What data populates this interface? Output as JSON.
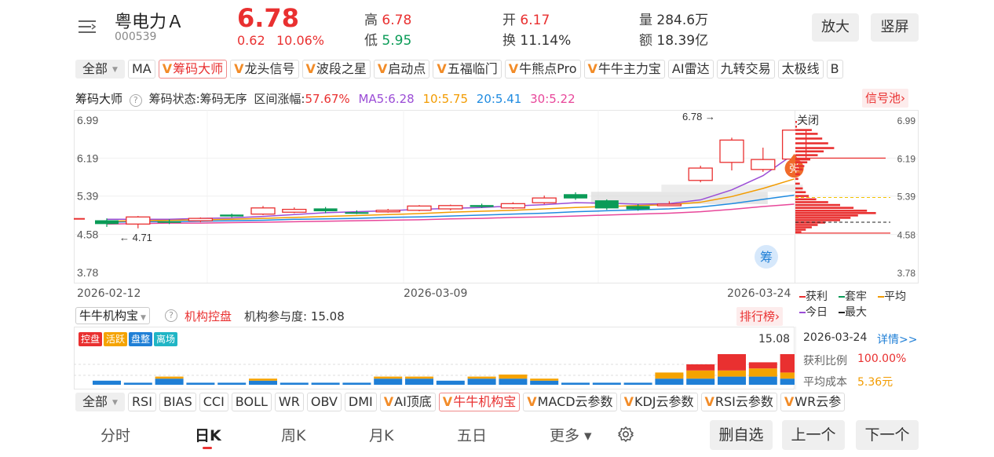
{
  "stock": {
    "name": "粤电力Ａ",
    "code": "000539",
    "price": "6.78",
    "change": "0.62",
    "change_pct": "10.06%",
    "high_label": "高",
    "high": "6.78",
    "low_label": "低",
    "low": "5.95",
    "open_label": "开",
    "open": "6.17",
    "turnover_label": "换",
    "turnover": "11.14%",
    "volume_label": "量",
    "volume": "284.6万",
    "amount_label": "额",
    "amount": "18.39亿"
  },
  "header_buttons": {
    "zoom": "放大",
    "portrait": "竖屏"
  },
  "indicator_tags": [
    {
      "label": "全部",
      "vip": false,
      "selected": false,
      "dropdown": true
    },
    {
      "label": "MA",
      "vip": false,
      "selected": false
    },
    {
      "label": "筹码大师",
      "vip": true,
      "selected": true
    },
    {
      "label": "龙头信号",
      "vip": true,
      "selected": false
    },
    {
      "label": "波段之星",
      "vip": true,
      "selected": false
    },
    {
      "label": "启动点",
      "vip": true,
      "selected": false
    },
    {
      "label": "五福临门",
      "vip": true,
      "selected": false
    },
    {
      "label": "牛熊点Pro",
      "vip": true,
      "selected": false
    },
    {
      "label": "牛牛主力宝",
      "vip": true,
      "selected": false
    },
    {
      "label": "AI雷达",
      "vip": false,
      "selected": false
    },
    {
      "label": "九转交易",
      "vip": false,
      "selected": false
    },
    {
      "label": "太极线",
      "vip": false,
      "selected": false
    },
    {
      "label": "B",
      "vip": false,
      "selected": false
    }
  ],
  "chip_info": {
    "title": "筹码大师",
    "status": "筹码状态:筹码无序",
    "range_label": "区间涨幅:",
    "range_value": "57.67%",
    "ma5": "MA5:6.28",
    "ma10": "10:5.75",
    "ma20": "20:5.41",
    "ma30": "30:5.22",
    "signal_pool": "信号池",
    "close_label": "关闭"
  },
  "chart_data": {
    "type": "candlestick",
    "y_ticks": [
      "6.99",
      "6.19",
      "5.39",
      "4.58",
      "3.78"
    ],
    "right_ticks": [
      "6.99",
      "6.19",
      "5.39",
      "4.58",
      "3.78"
    ],
    "ylim": [
      3.78,
      6.99
    ],
    "x_labels": [
      "2026-02-12",
      "2026-03-09",
      "2026-03-24"
    ],
    "max_annotation": "6.78",
    "min_annotation": "4.71",
    "candles": [
      {
        "o": 4.88,
        "c": 4.8,
        "h": 4.92,
        "l": 4.74
      },
      {
        "o": 4.8,
        "c": 4.95,
        "h": 4.97,
        "l": 4.71
      },
      {
        "o": 4.86,
        "c": 4.84,
        "h": 4.9,
        "l": 4.8
      },
      {
        "o": 4.87,
        "c": 4.92,
        "h": 4.94,
        "l": 4.84
      },
      {
        "o": 5.0,
        "c": 4.96,
        "h": 5.02,
        "l": 4.94
      },
      {
        "o": 5.01,
        "c": 5.14,
        "h": 5.18,
        "l": 4.99
      },
      {
        "o": 5.05,
        "c": 5.11,
        "h": 5.15,
        "l": 5.03
      },
      {
        "o": 5.13,
        "c": 5.07,
        "h": 5.16,
        "l": 5.03
      },
      {
        "o": 5.05,
        "c": 5.03,
        "h": 5.09,
        "l": 5.01
      },
      {
        "o": 5.06,
        "c": 5.09,
        "h": 5.12,
        "l": 5.04
      },
      {
        "o": 5.09,
        "c": 5.18,
        "h": 5.2,
        "l": 5.07
      },
      {
        "o": 5.12,
        "c": 5.19,
        "h": 5.21,
        "l": 5.09
      },
      {
        "o": 5.2,
        "c": 5.16,
        "h": 5.23,
        "l": 5.14
      },
      {
        "o": 5.14,
        "c": 5.23,
        "h": 5.26,
        "l": 5.12
      },
      {
        "o": 5.25,
        "c": 5.35,
        "h": 5.4,
        "l": 5.22
      },
      {
        "o": 5.43,
        "c": 5.34,
        "h": 5.47,
        "l": 5.31
      },
      {
        "o": 5.3,
        "c": 5.13,
        "h": 5.32,
        "l": 5.1
      },
      {
        "o": 5.18,
        "c": 5.11,
        "h": 5.22,
        "l": 5.08
      },
      {
        "o": 5.2,
        "c": 5.22,
        "h": 5.28,
        "l": 5.18
      },
      {
        "o": 5.72,
        "c": 5.98,
        "h": 6.03,
        "l": 5.68
      },
      {
        "o": 6.1,
        "c": 6.57,
        "h": 6.62,
        "l": 5.93
      },
      {
        "o": 5.95,
        "c": 6.16,
        "h": 6.41,
        "l": 5.9
      },
      {
        "o": 6.17,
        "c": 6.78,
        "h": 6.78,
        "l": 5.95
      }
    ],
    "ma5": [
      4.9,
      4.9,
      4.9,
      4.92,
      4.93,
      4.96,
      5.0,
      5.04,
      5.06,
      5.08,
      5.11,
      5.13,
      5.15,
      5.18,
      5.21,
      5.25,
      5.24,
      5.22,
      5.23,
      5.31,
      5.52,
      5.82,
      6.28
    ],
    "ma10": [
      4.86,
      4.87,
      4.88,
      4.89,
      4.9,
      4.92,
      4.94,
      4.96,
      4.98,
      5.0,
      5.02,
      5.05,
      5.07,
      5.09,
      5.12,
      5.15,
      5.17,
      5.19,
      5.21,
      5.26,
      5.38,
      5.55,
      5.75
    ],
    "ma20": [
      4.84,
      4.85,
      4.85,
      4.86,
      4.87,
      4.88,
      4.9,
      4.91,
      4.92,
      4.94,
      4.95,
      4.97,
      4.99,
      5.01,
      5.03,
      5.06,
      5.08,
      5.1,
      5.12,
      5.16,
      5.23,
      5.32,
      5.41
    ],
    "ma30": [
      4.8,
      4.81,
      4.82,
      4.82,
      4.83,
      4.84,
      4.85,
      4.86,
      4.87,
      4.88,
      4.89,
      4.91,
      4.92,
      4.94,
      4.95,
      4.97,
      4.99,
      5.01,
      5.03,
      5.06,
      5.11,
      5.17,
      5.22
    ],
    "chip_profile": [
      {
        "price": 6.95,
        "w": 8,
        "c": "#e93030"
      },
      {
        "price": 6.85,
        "w": 14,
        "c": "#e93030"
      },
      {
        "price": 6.78,
        "w": 22,
        "c": "#e93030"
      },
      {
        "price": 6.7,
        "w": 30,
        "c": "#e93030"
      },
      {
        "price": 6.6,
        "w": 36,
        "c": "#e93030"
      },
      {
        "price": 6.5,
        "w": 44,
        "c": "#e93030"
      },
      {
        "price": 6.4,
        "w": 52,
        "c": "#e93030"
      },
      {
        "price": 6.33,
        "w": 38,
        "c": "#e93030"
      },
      {
        "price": 6.25,
        "w": 30,
        "c": "#e93030"
      },
      {
        "price": 6.16,
        "w": 20,
        "c": "#e93030"
      },
      {
        "price": 6.1,
        "w": 16,
        "c": "#e93030"
      },
      {
        "price": 6.02,
        "w": 12,
        "c": "#e93030"
      },
      {
        "price": 5.95,
        "w": 10,
        "c": "#e93030"
      },
      {
        "price": 5.85,
        "w": 6,
        "c": "#e93030"
      },
      {
        "price": 5.75,
        "w": 4,
        "c": "#e93030"
      },
      {
        "price": 5.65,
        "w": 6,
        "c": "#e93030"
      },
      {
        "price": 5.55,
        "w": 10,
        "c": "#e93030"
      },
      {
        "price": 5.47,
        "w": 14,
        "c": "#e93030"
      },
      {
        "price": 5.39,
        "w": 18,
        "c": "#e93030"
      },
      {
        "price": 5.32,
        "w": 28,
        "c": "#e93030"
      },
      {
        "price": 5.26,
        "w": 44,
        "c": "#e93030"
      },
      {
        "price": 5.2,
        "w": 60,
        "c": "#e93030"
      },
      {
        "price": 5.14,
        "w": 78,
        "c": "#e93030"
      },
      {
        "price": 5.08,
        "w": 96,
        "c": "#e93030"
      },
      {
        "price": 5.03,
        "w": 108,
        "c": "#e93030"
      },
      {
        "price": 4.98,
        "w": 84,
        "c": "#e93030"
      },
      {
        "price": 4.93,
        "w": 74,
        "c": "#e93030"
      },
      {
        "price": 4.88,
        "w": 60,
        "c": "#e93030"
      },
      {
        "price": 4.83,
        "w": 40,
        "c": "#e93030"
      },
      {
        "price": 4.78,
        "w": 30,
        "c": "#e93030"
      },
      {
        "price": 4.73,
        "w": 22,
        "c": "#e93030"
      },
      {
        "price": 4.68,
        "w": 14,
        "c": "#e93030"
      },
      {
        "price": 4.63,
        "w": 8,
        "c": "#e93030"
      }
    ],
    "avg_cost_line": 5.36,
    "max_chip_line": 4.84
  },
  "chip_legend": {
    "profit": "获利",
    "trapped": "套牢",
    "average": "平均",
    "today": "今日",
    "max": "最大"
  },
  "sub_panel": {
    "selector": "牛牛机构宝",
    "title": "机构控盘",
    "participation": "机构参与度: 15.08",
    "rank_button": "排行榜",
    "tags": [
      {
        "label": "控盘",
        "color": "#e93030"
      },
      {
        "label": "活跃",
        "color": "#f5a300"
      },
      {
        "label": "盘整",
        "color": "#1f7fd6"
      },
      {
        "label": "离场",
        "color": "#20b5c5"
      }
    ],
    "max_value": "15.08",
    "date": "2026-03-24",
    "detail_link": "详情>>",
    "profit_ratio_label": "获利比例",
    "profit_ratio": "100.00%",
    "avg_cost_label": "平均成本",
    "avg_cost": "5.36元",
    "bars": [
      {
        "red": 0,
        "orange": 0,
        "blue": 2
      },
      {
        "red": 0,
        "orange": 0,
        "blue": 1
      },
      {
        "red": 0,
        "orange": 1,
        "blue": 3
      },
      {
        "red": 0,
        "orange": 0,
        "blue": 1
      },
      {
        "red": 0,
        "orange": 0,
        "blue": 1
      },
      {
        "red": 0,
        "orange": 1,
        "blue": 2
      },
      {
        "red": 0,
        "orange": 0,
        "blue": 1
      },
      {
        "red": 0,
        "orange": 0,
        "blue": 1
      },
      {
        "red": 0,
        "orange": 0,
        "blue": 1
      },
      {
        "red": 0,
        "orange": 1,
        "blue": 3
      },
      {
        "red": 0,
        "orange": 1,
        "blue": 3
      },
      {
        "red": 0,
        "orange": 0,
        "blue": 2
      },
      {
        "red": 0,
        "orange": 1,
        "blue": 3
      },
      {
        "red": 0,
        "orange": 2,
        "blue": 3
      },
      {
        "red": 0,
        "orange": 1,
        "blue": 2
      },
      {
        "red": 0,
        "orange": 0,
        "blue": 1
      },
      {
        "red": 0,
        "orange": 0,
        "blue": 1
      },
      {
        "red": 0,
        "orange": 0,
        "blue": 1
      },
      {
        "red": 0,
        "orange": 3,
        "blue": 3
      },
      {
        "red": 3,
        "orange": 4,
        "blue": 3
      },
      {
        "red": 8,
        "orange": 3,
        "blue": 4
      },
      {
        "red": 3,
        "orange": 4,
        "blue": 4
      },
      {
        "red": 9,
        "orange": 3,
        "blue": 3
      }
    ]
  },
  "lower_tags": [
    {
      "label": "全部",
      "vip": false,
      "selected": false,
      "dropdown": true
    },
    {
      "label": "RSI",
      "vip": false,
      "selected": false
    },
    {
      "label": "BIAS",
      "vip": false,
      "selected": false
    },
    {
      "label": "CCI",
      "vip": false,
      "selected": false
    },
    {
      "label": "BOLL",
      "vip": false,
      "selected": false
    },
    {
      "label": "WR",
      "vip": false,
      "selected": false
    },
    {
      "label": "OBV",
      "vip": false,
      "selected": false
    },
    {
      "label": "DMI",
      "vip": false,
      "selected": false
    },
    {
      "label": "AI顶底",
      "vip": true,
      "selected": false
    },
    {
      "label": "牛牛机构宝",
      "vip": true,
      "selected": true
    },
    {
      "label": "MACD云参数",
      "vip": true,
      "selected": false
    },
    {
      "label": "KDJ云参数",
      "vip": true,
      "selected": false
    },
    {
      "label": "RSI云参数",
      "vip": true,
      "selected": false
    },
    {
      "label": "WR云参",
      "vip": true,
      "selected": false
    }
  ],
  "bottom_tabs": {
    "tabs": [
      "分时",
      "日K",
      "周K",
      "月K",
      "五日",
      "更多"
    ],
    "active": "日K",
    "delete_self": "删自选",
    "prev": "上一个",
    "next": "下一个"
  },
  "icons": {
    "menu": "menu-icon",
    "help": "help-icon",
    "settings": "gear-icon",
    "bounce_badge": "弹",
    "chip_badge": "筹"
  }
}
